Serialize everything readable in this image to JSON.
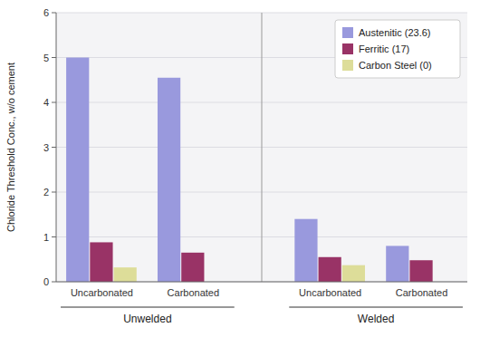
{
  "chart_data": {
    "type": "bar",
    "ylabel": "Chloride Threshold Conc., w/o cement",
    "categories": [
      "Uncarbonated",
      "Carbonated",
      "Uncarbonated",
      "Carbonated"
    ],
    "annotations": [
      "Unwelded",
      "Welded"
    ],
    "series": [
      {
        "name": "Austenitic (23.6)",
        "color": "#9999dd",
        "values": [
          5.0,
          4.55,
          1.4,
          0.8
        ]
      },
      {
        "name": "Ferritic (17)",
        "color": "#993366",
        "values": [
          0.88,
          0.65,
          0.55,
          0.48
        ]
      },
      {
        "name": "Carbon Steel (0)",
        "color": "#dddd99",
        "values": [
          0.32,
          0.0,
          0.37,
          0.0
        ]
      }
    ],
    "ylim": [
      0,
      6
    ],
    "yticks": [
      0,
      1,
      2,
      3,
      4,
      5,
      6
    ],
    "grid": true,
    "legend": "upper right"
  }
}
